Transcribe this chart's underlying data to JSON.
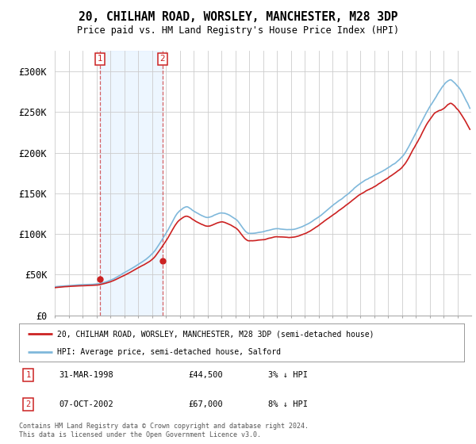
{
  "title_line1": "20, CHILHAM ROAD, WORSLEY, MANCHESTER, M28 3DP",
  "title_line2": "Price paid vs. HM Land Registry's House Price Index (HPI)",
  "ylim": [
    0,
    325000
  ],
  "yticks": [
    0,
    50000,
    100000,
    150000,
    200000,
    250000,
    300000
  ],
  "ytick_labels": [
    "£0",
    "£50K",
    "£100K",
    "£150K",
    "£200K",
    "£250K",
    "£300K"
  ],
  "hpi_color": "#7fb8db",
  "price_color": "#cc2222",
  "sale1_date_x": 1998.25,
  "sale1_price": 44500,
  "sale1_label": "1",
  "sale1_date_str": "31-MAR-1998",
  "sale1_price_str": "£44,500",
  "sale1_hpi_str": "3% ↓ HPI",
  "sale2_date_x": 2002.77,
  "sale2_price": 67000,
  "sale2_label": "2",
  "sale2_date_str": "07-OCT-2002",
  "sale2_price_str": "£67,000",
  "sale2_hpi_str": "8% ↓ HPI",
  "legend_label_price": "20, CHILHAM ROAD, WORSLEY, MANCHESTER, M28 3DP (semi-detached house)",
  "legend_label_hpi": "HPI: Average price, semi-detached house, Salford",
  "footnote": "Contains HM Land Registry data © Crown copyright and database right 2024.\nThis data is licensed under the Open Government Licence v3.0.",
  "xmin": 1995.0,
  "xmax": 2025.0,
  "background_color": "#ffffff",
  "grid_color": "#cccccc",
  "vline1_x": 1998.25,
  "vline2_x": 2002.77,
  "span_color": "#ddeeff",
  "span_alpha": 0.5
}
